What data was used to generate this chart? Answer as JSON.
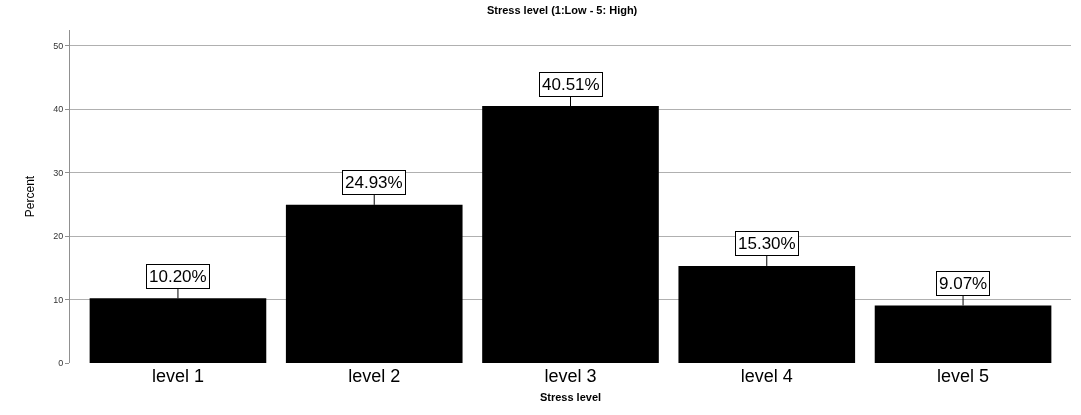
{
  "chart_data": {
    "type": "bar",
    "title": "Stress level (1:Low - 5: High)",
    "xlabel": "Stress level",
    "ylabel": "Percent",
    "categories": [
      "level 1",
      "level 2",
      "level 3",
      "level 4",
      "level 5"
    ],
    "values": [
      10.2,
      24.93,
      40.51,
      15.3,
      9.07
    ],
    "value_labels": [
      "10.20%",
      "24.93%",
      "40.51%",
      "15.30%",
      "9.07%"
    ],
    "color": "#000000",
    "ylim": [
      0,
      52.5
    ],
    "yticks": [
      0,
      10,
      20,
      30,
      40,
      50
    ],
    "grid": "y"
  }
}
